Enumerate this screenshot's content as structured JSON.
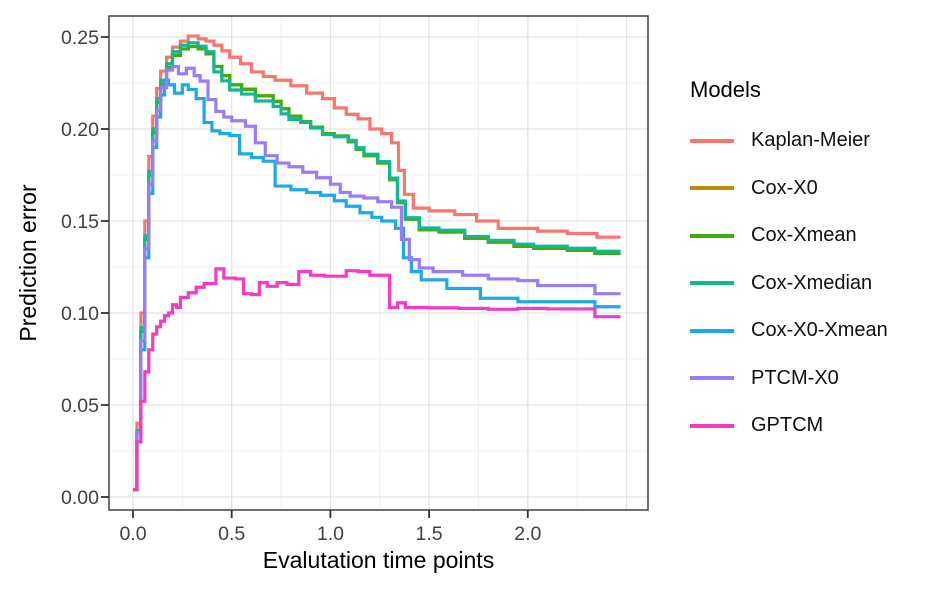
{
  "chart_data": {
    "type": "line",
    "subtype": "step",
    "title": "",
    "xlabel": "Evalutation time points",
    "ylabel": "Prediction error",
    "legend_title": "Models",
    "legend_position": "right",
    "grid": "major+minor",
    "xlim": [
      -0.125,
      2.61
    ],
    "ylim": [
      -0.007,
      0.2637
    ],
    "x_ticks": [
      0.0,
      0.5,
      1.0,
      1.5,
      2.0
    ],
    "x_tick_labels": [
      "0.0",
      "0.5",
      "1.0",
      "1.5",
      "2.0"
    ],
    "x_major_gridlines": [
      0.0,
      0.5,
      1.0,
      1.5,
      2.0,
      2.5
    ],
    "x_minor_gridlines": [
      0.25,
      0.75,
      1.25,
      1.75,
      2.25
    ],
    "y_ticks": [
      0.0,
      0.05,
      0.1,
      0.15,
      0.2,
      0.25
    ],
    "y_tick_labels": [
      "0.00",
      "0.05",
      "0.10",
      "0.15",
      "0.20",
      "0.25"
    ],
    "y_minor_gridlines": [
      0.025,
      0.075,
      0.125,
      0.175,
      0.225
    ],
    "series": [
      {
        "name": "Kaplan-Meier",
        "color": "#F8766D",
        "x": [
          0,
          0.02,
          0.04,
          0.06,
          0.08,
          0.1,
          0.12,
          0.14,
          0.17,
          0.2,
          0.24,
          0.28,
          0.33,
          0.37,
          0.41,
          0.45,
          0.49,
          0.545,
          0.6,
          0.66,
          0.72,
          0.8,
          0.88,
          0.96,
          1.02,
          1.08,
          1.14,
          1.2,
          1.26,
          1.31,
          1.345,
          1.375,
          1.42,
          1.5,
          1.63,
          1.74,
          1.85,
          2.05,
          2.2,
          2.35,
          2.47
        ],
        "y": [
          0.004,
          0.04,
          0.1,
          0.15,
          0.185,
          0.207,
          0.222,
          0.2315,
          0.239,
          0.2445,
          0.2478,
          0.2505,
          0.249,
          0.2478,
          0.2455,
          0.2425,
          0.239,
          0.2355,
          0.231,
          0.2285,
          0.2265,
          0.2235,
          0.2195,
          0.2165,
          0.2115,
          0.208,
          0.2055,
          0.2,
          0.1975,
          0.1925,
          0.1775,
          0.1645,
          0.157,
          0.1555,
          0.1535,
          0.15,
          0.146,
          0.1445,
          0.1432,
          0.1412,
          0.1412
        ]
      },
      {
        "name": "Cox-X0",
        "color": "#BC8D0B",
        "x": [
          0,
          0.02,
          0.04,
          0.06,
          0.08,
          0.1,
          0.12,
          0.14,
          0.17,
          0.2,
          0.24,
          0.28,
          0.33,
          0.37,
          0.41,
          0.45,
          0.49,
          0.55,
          0.62,
          0.71,
          0.75,
          0.79,
          0.85,
          0.9,
          0.96,
          1.02,
          1.09,
          1.13,
          1.17,
          1.24,
          1.3,
          1.34,
          1.38,
          1.45,
          1.55,
          1.68,
          1.8,
          1.93,
          2.03,
          2.2,
          2.34,
          2.47
        ],
        "y": [
          0.004,
          0.035,
          0.09,
          0.14,
          0.175,
          0.198,
          0.2145,
          0.2245,
          0.2335,
          0.24,
          0.2435,
          0.2448,
          0.2435,
          0.2408,
          0.234,
          0.229,
          0.224,
          0.2216,
          0.218,
          0.215,
          0.211,
          0.207,
          0.204,
          0.201,
          0.1975,
          0.1962,
          0.193,
          0.189,
          0.1855,
          0.1815,
          0.1725,
          0.16,
          0.151,
          0.1452,
          0.144,
          0.1406,
          0.1385,
          0.1362,
          0.1351,
          0.134,
          0.1324,
          0.1324
        ]
      },
      {
        "name": "Cox-Xmean",
        "color": "#3FAB10",
        "x": [
          0,
          0.02,
          0.04,
          0.06,
          0.08,
          0.1,
          0.12,
          0.14,
          0.17,
          0.2,
          0.24,
          0.28,
          0.33,
          0.37,
          0.41,
          0.45,
          0.49,
          0.55,
          0.62,
          0.71,
          0.75,
          0.79,
          0.85,
          0.9,
          0.96,
          1.02,
          1.09,
          1.13,
          1.17,
          1.24,
          1.3,
          1.34,
          1.38,
          1.45,
          1.55,
          1.68,
          1.8,
          1.93,
          2.03,
          2.2,
          2.34,
          2.47
        ],
        "y": [
          0.004,
          0.035,
          0.09,
          0.14,
          0.175,
          0.198,
          0.2145,
          0.2245,
          0.2335,
          0.24,
          0.2435,
          0.2448,
          0.2435,
          0.2408,
          0.234,
          0.229,
          0.224,
          0.2216,
          0.218,
          0.215,
          0.211,
          0.207,
          0.204,
          0.201,
          0.1975,
          0.1962,
          0.193,
          0.189,
          0.1855,
          0.1815,
          0.1725,
          0.16,
          0.151,
          0.1452,
          0.144,
          0.1406,
          0.1385,
          0.1362,
          0.1351,
          0.134,
          0.1324,
          0.1324
        ]
      },
      {
        "name": "Cox-Xmedian",
        "color": "#14B795",
        "x": [
          0,
          0.02,
          0.04,
          0.06,
          0.08,
          0.1,
          0.12,
          0.14,
          0.17,
          0.2,
          0.24,
          0.28,
          0.33,
          0.37,
          0.41,
          0.45,
          0.49,
          0.55,
          0.62,
          0.71,
          0.75,
          0.79,
          0.85,
          0.9,
          0.96,
          1.02,
          1.09,
          1.13,
          1.17,
          1.24,
          1.3,
          1.34,
          1.38,
          1.45,
          1.55,
          1.68,
          1.8,
          1.93,
          2.03,
          2.2,
          2.34,
          2.47
        ],
        "y": [
          0.004,
          0.036,
          0.092,
          0.142,
          0.177,
          0.2,
          0.2165,
          0.2265,
          0.2355,
          0.242,
          0.2455,
          0.2468,
          0.245,
          0.242,
          0.231,
          0.2262,
          0.2212,
          0.219,
          0.2152,
          0.2122,
          0.2082,
          0.2052,
          0.2035,
          0.2005,
          0.197,
          0.1958,
          0.1938,
          0.1898,
          0.1863,
          0.1823,
          0.1733,
          0.1608,
          0.1518,
          0.1462,
          0.145,
          0.1416,
          0.1395,
          0.1374,
          0.1363,
          0.1352,
          0.1336,
          0.1336
        ]
      },
      {
        "name": "Cox-X0-Xmean",
        "color": "#1CAAE6",
        "x": [
          0,
          0.02,
          0.04,
          0.06,
          0.08,
          0.1,
          0.12,
          0.14,
          0.16,
          0.18,
          0.21,
          0.25,
          0.28,
          0.32,
          0.36,
          0.4,
          0.44,
          0.49,
          0.54,
          0.6,
          0.66,
          0.72,
          0.8,
          0.88,
          0.95,
          1.02,
          1.08,
          1.15,
          1.21,
          1.26,
          1.33,
          1.37,
          1.41,
          1.46,
          1.59,
          1.76,
          1.95,
          2.34,
          2.47
        ],
        "y": [
          0.004,
          0.03,
          0.08,
          0.13,
          0.165,
          0.19,
          0.2065,
          0.2185,
          0.2265,
          0.224,
          0.2195,
          0.224,
          0.2215,
          0.2165,
          0.2035,
          0.199,
          0.1975,
          0.1965,
          0.1865,
          0.1845,
          0.1825,
          0.169,
          0.167,
          0.1655,
          0.164,
          0.161,
          0.158,
          0.1545,
          0.152,
          0.15,
          0.146,
          0.13,
          0.1225,
          0.118,
          0.1133,
          0.108,
          0.1061,
          0.1034,
          0.1034
        ]
      },
      {
        "name": "PTCM-X0",
        "color": "#9B7CF7",
        "x": [
          0,
          0.02,
          0.04,
          0.06,
          0.08,
          0.1,
          0.12,
          0.14,
          0.17,
          0.2,
          0.23,
          0.27,
          0.31,
          0.34,
          0.38,
          0.42,
          0.46,
          0.5,
          0.57,
          0.62,
          0.67,
          0.73,
          0.79,
          0.86,
          0.93,
          1.0,
          1.05,
          1.1,
          1.17,
          1.24,
          1.31,
          1.36,
          1.4,
          1.45,
          1.52,
          1.67,
          1.8,
          1.95,
          2.05,
          2.34,
          2.47
        ],
        "y": [
          0.004,
          0.035,
          0.085,
          0.135,
          0.17,
          0.1935,
          0.21,
          0.2225,
          0.232,
          0.234,
          0.23,
          0.233,
          0.229,
          0.226,
          0.216,
          0.2095,
          0.2065,
          0.2045,
          0.2015,
          0.1925,
          0.1855,
          0.1815,
          0.1795,
          0.1765,
          0.1735,
          0.17,
          0.1655,
          0.1635,
          0.1625,
          0.1605,
          0.1575,
          0.14,
          0.129,
          0.1245,
          0.1225,
          0.1205,
          0.1185,
          0.1176,
          0.1149,
          0.1105,
          0.1105
        ]
      },
      {
        "name": "GPTCM",
        "color": "#F23CC5",
        "x": [
          0,
          0.02,
          0.04,
          0.06,
          0.08,
          0.1,
          0.12,
          0.14,
          0.16,
          0.18,
          0.2,
          0.22,
          0.24,
          0.28,
          0.32,
          0.36,
          0.42,
          0.46,
          0.52,
          0.56,
          0.6,
          0.64,
          0.68,
          0.73,
          0.78,
          0.84,
          0.9,
          0.97,
          1.04,
          1.08,
          1.14,
          1.2,
          1.25,
          1.3,
          1.34,
          1.38,
          1.5,
          1.65,
          1.8,
          1.95,
          2.1,
          2.34,
          2.47
        ],
        "y": [
          0.004,
          0.03,
          0.052,
          0.068,
          0.08,
          0.0885,
          0.0925,
          0.0955,
          0.0985,
          0.1,
          0.1045,
          0.103,
          0.1085,
          0.111,
          0.114,
          0.116,
          0.124,
          0.119,
          0.1185,
          0.1105,
          0.11,
          0.1165,
          0.1145,
          0.1165,
          0.1155,
          0.1225,
          0.1205,
          0.12,
          0.12,
          0.123,
          0.1225,
          0.1205,
          0.1205,
          0.103,
          0.1055,
          0.103,
          0.1028,
          0.1025,
          0.102,
          0.1025,
          0.1022,
          0.098,
          0.098
        ]
      }
    ],
    "style": {
      "panel_border_color": "#333333",
      "major_grid_color": "#E3E3E3",
      "minor_grid_color": "#F0F0F0",
      "tick_color": "#333333",
      "tick_label_color": "#404040",
      "line_width": 3.2
    }
  }
}
